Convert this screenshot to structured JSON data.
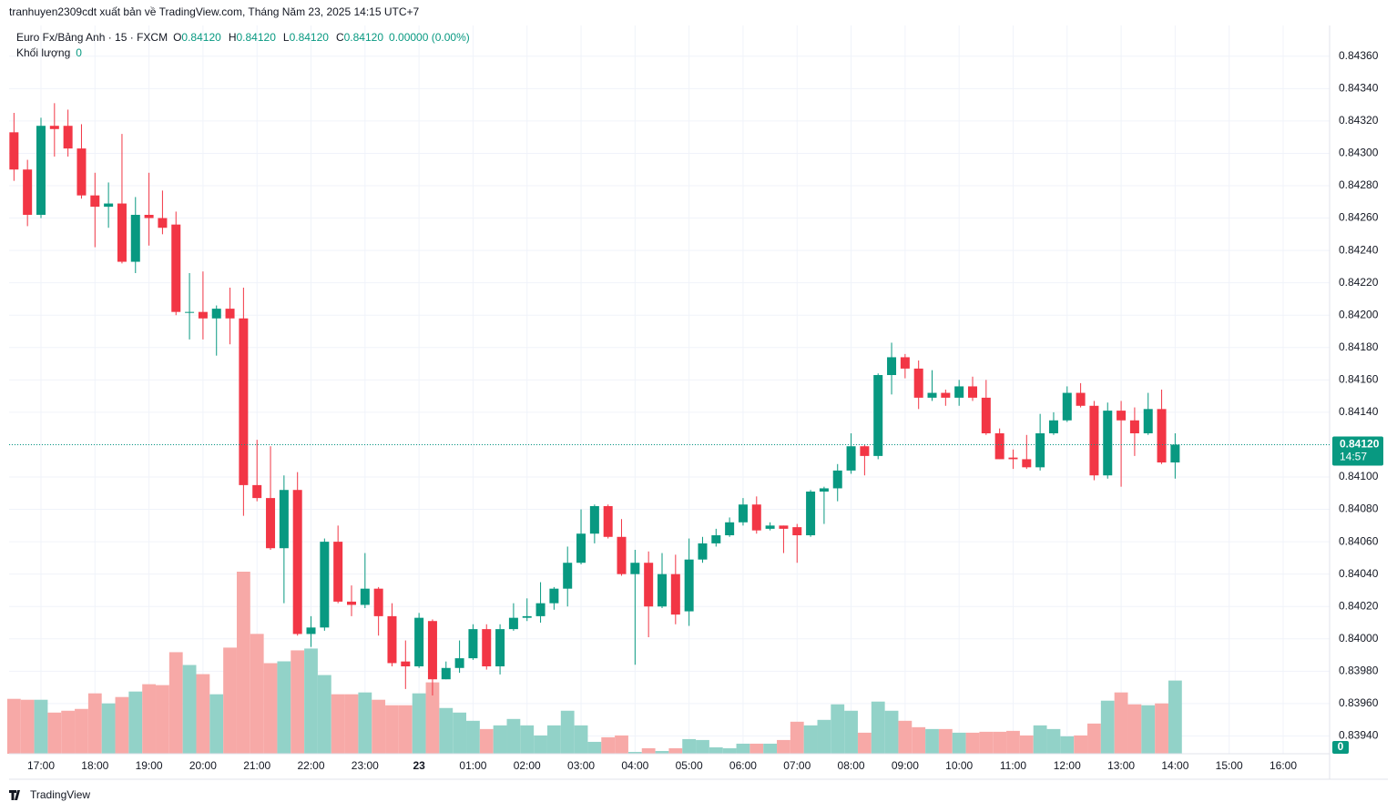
{
  "header": {
    "publisher": "tranhuyen2309cdt xuất bản về TradingView.com, Tháng Năm 23, 2025 14:15 UTC+7"
  },
  "legend": {
    "symbol": "Euro Fx/Bảng Anh · 15 · FXCM",
    "o_label": "O",
    "o": "0.84120",
    "h_label": "H",
    "h": "0.84120",
    "l_label": "L",
    "l": "0.84120",
    "c_label": "C",
    "c": "0.84120",
    "change": "0.00000 (0.00%)",
    "volume_label": "Khối lượng",
    "volume": "0"
  },
  "footer": {
    "brand": "TradingView"
  },
  "chart_data": {
    "type": "candlestick",
    "up_color": "#089981",
    "down_color": "#f23645",
    "volume_up_color": "#92d2c8",
    "volume_down_color": "#f7a9a7",
    "grid": true,
    "xlim": [
      16.41,
      40.86
    ],
    "xticks": [
      {
        "value": 17,
        "label": "17:00"
      },
      {
        "value": 18,
        "label": "18:00"
      },
      {
        "value": 19,
        "label": "19:00"
      },
      {
        "value": 20,
        "label": "20:00"
      },
      {
        "value": 21,
        "label": "21:00"
      },
      {
        "value": 22,
        "label": "22:00"
      },
      {
        "value": 23,
        "label": "23:00"
      },
      {
        "value": 24,
        "label": "23"
      },
      {
        "value": 25,
        "label": "01:00"
      },
      {
        "value": 26,
        "label": "02:00"
      },
      {
        "value": 27,
        "label": "03:00"
      },
      {
        "value": 28,
        "label": "04:00"
      },
      {
        "value": 29,
        "label": "05:00"
      },
      {
        "value": 30,
        "label": "06:00"
      },
      {
        "value": 31,
        "label": "07:00"
      },
      {
        "value": 32,
        "label": "08:00"
      },
      {
        "value": 33,
        "label": "09:00"
      },
      {
        "value": 34,
        "label": "10:00"
      },
      {
        "value": 35,
        "label": "11:00"
      },
      {
        "value": 36,
        "label": "12:00"
      },
      {
        "value": 37,
        "label": "13:00"
      },
      {
        "value": 38,
        "label": "14:00"
      },
      {
        "value": 39,
        "label": "15:00"
      },
      {
        "value": 40,
        "label": "16:00"
      }
    ],
    "ylim": [
      0.83929,
      0.84379
    ],
    "yticks": [
      {
        "value": 0.8394,
        "label": "0.83940"
      },
      {
        "value": 0.8396,
        "label": "0.83960"
      },
      {
        "value": 0.8398,
        "label": "0.83980"
      },
      {
        "value": 0.84,
        "label": "0.84000"
      },
      {
        "value": 0.8402,
        "label": "0.84020"
      },
      {
        "value": 0.8404,
        "label": "0.84040"
      },
      {
        "value": 0.8406,
        "label": "0.84060"
      },
      {
        "value": 0.8408,
        "label": "0.84080"
      },
      {
        "value": 0.841,
        "label": "0.84100"
      },
      {
        "value": 0.8412,
        "label": "0.84120"
      },
      {
        "value": 0.8414,
        "label": "0.84140"
      },
      {
        "value": 0.8416,
        "label": "0.84160"
      },
      {
        "value": 0.8418,
        "label": "0.84180"
      },
      {
        "value": 0.842,
        "label": "0.84200"
      },
      {
        "value": 0.8422,
        "label": "0.84220"
      },
      {
        "value": 0.8424,
        "label": "0.84240"
      },
      {
        "value": 0.8426,
        "label": "0.84260"
      },
      {
        "value": 0.8428,
        "label": "0.84280"
      },
      {
        "value": 0.843,
        "label": "0.84300"
      },
      {
        "value": 0.8432,
        "label": "0.84320"
      },
      {
        "value": 0.8434,
        "label": "0.84340"
      },
      {
        "value": 0.8436,
        "label": "0.84360"
      }
    ],
    "last_price": {
      "value": 0.8412,
      "label": "0.84120"
    },
    "countdown": "14:57",
    "last_volume": "0",
    "x": [
      16.5,
      16.75,
      17,
      17.25,
      17.5,
      17.75,
      18,
      18.25,
      18.5,
      18.75,
      19,
      19.25,
      19.5,
      19.75,
      20,
      20.25,
      20.5,
      20.75,
      21,
      21.25,
      21.5,
      21.75,
      22,
      22.25,
      22.5,
      22.75,
      23,
      23.25,
      23.5,
      23.75,
      24,
      24.25,
      24.5,
      24.75,
      25,
      25.25,
      25.5,
      25.75,
      26,
      26.25,
      26.5,
      26.75,
      27,
      27.25,
      27.5,
      27.75,
      28,
      28.25,
      28.5,
      28.75,
      29,
      29.25,
      29.5,
      29.75,
      30,
      30.25,
      30.5,
      30.75,
      31,
      31.25,
      31.5,
      31.75,
      32,
      32.25,
      32.5,
      32.75,
      33,
      33.25,
      33.5,
      33.75,
      34,
      34.25,
      34.5,
      34.75,
      35,
      35.25,
      35.5,
      35.75,
      36,
      36.25,
      36.5,
      36.75,
      37,
      37.25,
      37.5,
      37.75,
      38
    ],
    "open": [
      0.84313,
      0.8429,
      0.84262,
      0.84317,
      0.84317,
      0.84303,
      0.84274,
      0.84267,
      0.84269,
      0.84233,
      0.84262,
      0.8426,
      0.84256,
      0.84202,
      0.84202,
      0.84198,
      0.84204,
      0.84198,
      0.84095,
      0.84087,
      0.84056,
      0.84092,
      0.84003,
      0.84007,
      0.8406,
      0.84023,
      0.84021,
      0.84031,
      0.84014,
      0.83986,
      0.83983,
      0.84011,
      0.83975,
      0.83982,
      0.83988,
      0.84006,
      0.83983,
      0.84006,
      0.84013,
      0.84014,
      0.84022,
      0.84031,
      0.84047,
      0.84065,
      0.84082,
      0.84063,
      0.8404,
      0.84047,
      0.8402,
      0.8404,
      0.84017,
      0.84049,
      0.84059,
      0.84064,
      0.84072,
      0.84083,
      0.84068,
      0.8407,
      0.84069,
      0.84064,
      0.84091,
      0.84093,
      0.84104,
      0.84119,
      0.84113,
      0.84163,
      0.84174,
      0.84167,
      0.84149,
      0.84152,
      0.84149,
      0.84156,
      0.84149,
      0.84127,
      0.84112,
      0.84111,
      0.84106,
      0.84127,
      0.84135,
      0.84152,
      0.84144,
      0.84101,
      0.84141,
      0.84135,
      0.84127,
      0.84142,
      0.84109
    ],
    "high": [
      0.84325,
      0.84296,
      0.84322,
      0.84331,
      0.84327,
      0.84318,
      0.84288,
      0.84282,
      0.84312,
      0.84273,
      0.84288,
      0.84277,
      0.84264,
      0.84226,
      0.84227,
      0.84206,
      0.84217,
      0.84217,
      0.84123,
      0.84119,
      0.84101,
      0.84103,
      0.84014,
      0.84062,
      0.8407,
      0.84033,
      0.84053,
      0.84032,
      0.84022,
      0.83999,
      0.84016,
      0.84012,
      0.83986,
      0.83999,
      0.84009,
      0.84009,
      0.84009,
      0.84022,
      0.84025,
      0.84035,
      0.84032,
      0.84057,
      0.8408,
      0.84083,
      0.84083,
      0.84074,
      0.84055,
      0.84054,
      0.84053,
      0.84052,
      0.84062,
      0.84063,
      0.84068,
      0.84075,
      0.84087,
      0.84088,
      0.84072,
      0.8407,
      0.84071,
      0.84092,
      0.84094,
      0.84108,
      0.84127,
      0.8412,
      0.84164,
      0.84183,
      0.84176,
      0.84172,
      0.84166,
      0.84154,
      0.8416,
      0.84162,
      0.8416,
      0.8413,
      0.84117,
      0.84126,
      0.84139,
      0.8414,
      0.84156,
      0.84158,
      0.84147,
      0.84146,
      0.84147,
      0.84143,
      0.84152,
      0.84154,
      0.84127
    ],
    "low": [
      0.84283,
      0.84255,
      0.8426,
      0.84298,
      0.84298,
      0.84272,
      0.84242,
      0.84254,
      0.84232,
      0.84226,
      0.84243,
      0.8425,
      0.842,
      0.84185,
      0.84185,
      0.84175,
      0.84182,
      0.84076,
      0.84085,
      0.84055,
      0.84022,
      0.84002,
      0.83995,
      0.84005,
      0.84022,
      0.84014,
      0.84019,
      0.84002,
      0.83983,
      0.83969,
      0.83982,
      0.83965,
      0.83975,
      0.83979,
      0.83987,
      0.83981,
      0.83978,
      0.84005,
      0.84011,
      0.8401,
      0.84018,
      0.8402,
      0.84046,
      0.84059,
      0.84062,
      0.84039,
      0.83984,
      0.84001,
      0.84019,
      0.84009,
      0.84008,
      0.84047,
      0.84057,
      0.84063,
      0.8407,
      0.84065,
      0.84067,
      0.84053,
      0.84047,
      0.84063,
      0.84071,
      0.84085,
      0.84102,
      0.84101,
      0.84111,
      0.84151,
      0.84161,
      0.84142,
      0.84147,
      0.84144,
      0.84144,
      0.84147,
      0.84126,
      0.84111,
      0.84105,
      0.84105,
      0.84104,
      0.84126,
      0.84134,
      0.84143,
      0.84098,
      0.84099,
      0.84094,
      0.84113,
      0.84126,
      0.84108,
      0.84099
    ],
    "close": [
      0.8429,
      0.84262,
      0.84317,
      0.84315,
      0.84303,
      0.84274,
      0.84267,
      0.84269,
      0.84233,
      0.84262,
      0.8426,
      0.84254,
      0.84202,
      0.84202,
      0.84198,
      0.84204,
      0.84198,
      0.84095,
      0.84087,
      0.84056,
      0.84092,
      0.84003,
      0.84007,
      0.8406,
      0.84023,
      0.84021,
      0.84031,
      0.84014,
      0.83985,
      0.83983,
      0.84013,
      0.83975,
      0.83982,
      0.83988,
      0.84006,
      0.83983,
      0.84006,
      0.84013,
      0.84014,
      0.84022,
      0.84031,
      0.84047,
      0.84065,
      0.84082,
      0.84063,
      0.8404,
      0.84047,
      0.8402,
      0.8404,
      0.84015,
      0.84049,
      0.84059,
      0.84064,
      0.84072,
      0.84083,
      0.84067,
      0.8407,
      0.84068,
      0.84064,
      0.84091,
      0.84093,
      0.84104,
      0.84119,
      0.84113,
      0.84163,
      0.84174,
      0.84167,
      0.84149,
      0.84152,
      0.84149,
      0.84156,
      0.84149,
      0.84127,
      0.84111,
      0.84111,
      0.84106,
      0.84127,
      0.84135,
      0.84152,
      0.84144,
      0.84101,
      0.84141,
      0.84135,
      0.84127,
      0.84142,
      0.84109,
      0.8412
    ],
    "volume": [
      60,
      59,
      59,
      45,
      47,
      49,
      66,
      55,
      62,
      68,
      76,
      75,
      111,
      97,
      87,
      65,
      116,
      199,
      131,
      99,
      101,
      113,
      115,
      86,
      65,
      65,
      67,
      59,
      53,
      53,
      66,
      78,
      50,
      45,
      36,
      27,
      31,
      38,
      31,
      20,
      31,
      47,
      31,
      13,
      18,
      20,
      2,
      6,
      3,
      6,
      16,
      15,
      7,
      6,
      11,
      11,
      11,
      15,
      35,
      31,
      37,
      54,
      47,
      23,
      57,
      47,
      36,
      29,
      27,
      27,
      23,
      23,
      24,
      24,
      25,
      20,
      31,
      27,
      19,
      20,
      33,
      58,
      67,
      54,
      53,
      55,
      80
    ]
  }
}
